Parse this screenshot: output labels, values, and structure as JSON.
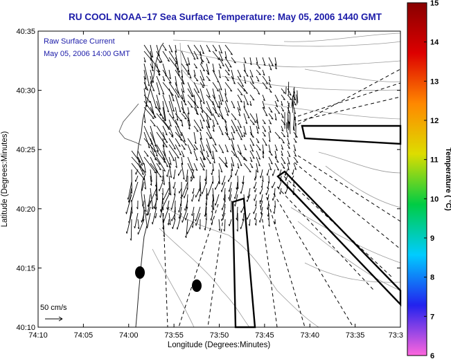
{
  "title": "RU COOL  NOAA–17  Sea Surface Temperature:  May 05, 2006 1440 GMT",
  "annotation": {
    "line1": "Raw Surface Current",
    "line2": "May 05, 2006 14:00 GMT"
  },
  "scale_label": "50 cm/s",
  "x_axis": {
    "label": "Longitude (Degrees:Minutes)",
    "ticks": [
      "74:10",
      "74:05",
      "74:00",
      "73:55",
      "73:50",
      "73:45",
      "73:40",
      "73:35",
      "73:3"
    ]
  },
  "y_axis": {
    "label": "Latitude (Degrees:Minutes)",
    "ticks": [
      "40:35",
      "40:30",
      "40:25",
      "40:20",
      "40:15",
      "40:10"
    ]
  },
  "colorbar": {
    "label": "Temperature ( °C)",
    "min": 6,
    "max": 15,
    "ticks": [
      "15",
      "14",
      "13",
      "12",
      "11",
      "10",
      "9",
      "8",
      "7",
      "6"
    ],
    "colors": [
      "#ff66dd",
      "#2222ee",
      "#00ccff",
      "#00cc44",
      "#dddd00",
      "#ff8800",
      "#dd0000",
      "#880000"
    ]
  },
  "chart_data": {
    "type": "map",
    "x_range_lon": [
      "74:10",
      "73:30"
    ],
    "y_range_lat": [
      "40:10",
      "40:35"
    ],
    "markers": [
      {
        "name": "station",
        "lon": "73:58.8",
        "lat": "40:14.6"
      },
      {
        "name": "station",
        "lon": "73:52.2",
        "lat": "40:13.6"
      }
    ]
  }
}
